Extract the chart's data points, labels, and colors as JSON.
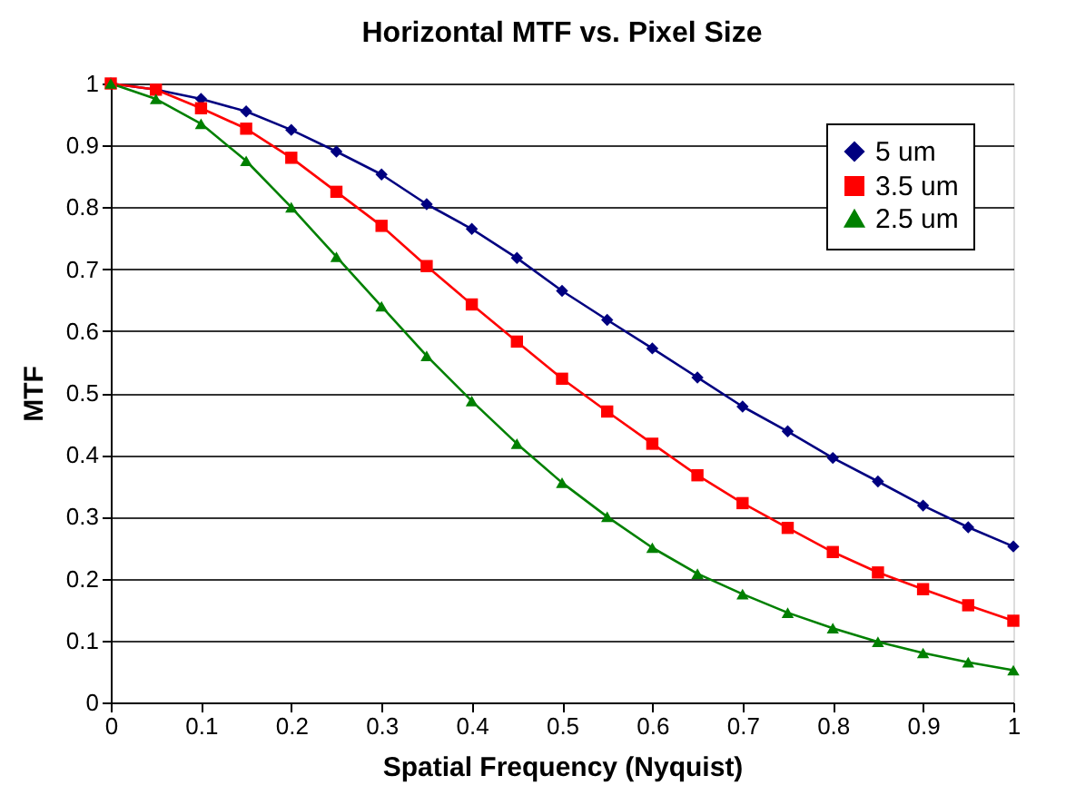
{
  "chart_data": {
    "type": "line",
    "title": "Horizontal MTF vs. Pixel Size",
    "xlabel": "Spatial Frequency (Nyquist)",
    "ylabel": "MTF",
    "x": [
      0,
      0.05,
      0.1,
      0.15,
      0.2,
      0.25,
      0.3,
      0.35,
      0.4,
      0.45,
      0.5,
      0.55,
      0.6,
      0.65,
      0.7,
      0.75,
      0.8,
      0.85,
      0.9,
      0.95,
      1
    ],
    "series": [
      {
        "name": "5 um",
        "color": "#000080",
        "marker": "diamond",
        "values": [
          1,
          0.99,
          0.975,
          0.955,
          0.925,
          0.89,
          0.853,
          0.805,
          0.765,
          0.718,
          0.665,
          0.618,
          0.572,
          0.525,
          0.478,
          0.438,
          0.395,
          0.357,
          0.318,
          0.283,
          0.252
        ]
      },
      {
        "name": "3.5 um",
        "color": "#ff0000",
        "marker": "square",
        "values": [
          1,
          0.99,
          0.96,
          0.927,
          0.88,
          0.825,
          0.77,
          0.705,
          0.643,
          0.583,
          0.523,
          0.47,
          0.418,
          0.367,
          0.322,
          0.282,
          0.243,
          0.21,
          0.183,
          0.157,
          0.132
        ]
      },
      {
        "name": "2.5 um",
        "color": "#008000",
        "marker": "triangle",
        "values": [
          1,
          0.975,
          0.935,
          0.875,
          0.8,
          0.72,
          0.64,
          0.56,
          0.487,
          0.418,
          0.355,
          0.3,
          0.25,
          0.208,
          0.175,
          0.145,
          0.12,
          0.098,
          0.08,
          0.065,
          0.052
        ]
      }
    ],
    "xlim": [
      0,
      1
    ],
    "xticks": [
      0,
      0.1,
      0.2,
      0.3,
      0.4,
      0.5,
      0.6,
      0.7,
      0.8,
      0.9,
      1
    ],
    "ylim": [
      0,
      1
    ],
    "yticks": [
      0,
      0.1,
      0.2,
      0.3,
      0.4,
      0.5,
      0.6,
      0.7,
      0.8,
      0.9,
      1
    ],
    "grid": "y",
    "legend": "top right",
    "line_style": "solid"
  }
}
